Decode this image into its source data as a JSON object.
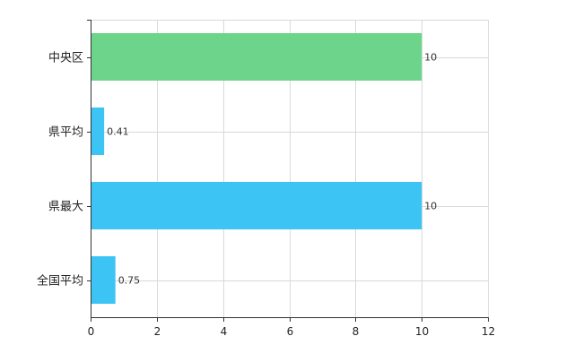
{
  "chart_data": {
    "type": "bar",
    "orientation": "horizontal",
    "categories": [
      "中央区",
      "県平均",
      "県最大",
      "全国平均"
    ],
    "values": [
      10,
      0.41,
      10,
      0.75
    ],
    "value_labels": [
      "10",
      "0.41",
      "10",
      "0.75"
    ],
    "colors": [
      "#6dd48c",
      "#3cc4f4",
      "#3cc4f4",
      "#3cc4f4"
    ],
    "xlim": [
      0,
      12
    ],
    "x_ticks": [
      0,
      2,
      4,
      6,
      8,
      10,
      12
    ],
    "grid": true,
    "legend": "none"
  }
}
